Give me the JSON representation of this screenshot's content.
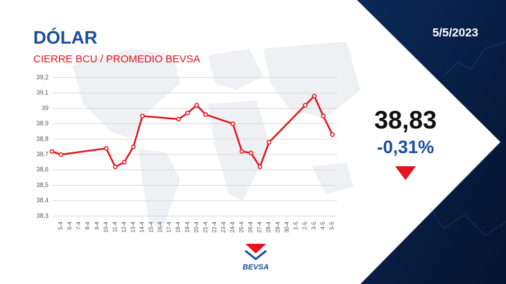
{
  "chart_data": {
    "type": "line",
    "title": "DÓLAR",
    "subtitle": "CIERRE BCU / PROMEDIO BEVSA",
    "categories": [
      null,
      "5-4",
      "6-4",
      "7-4",
      "8-4",
      "9-4",
      "10-4",
      "11-4",
      "12-4",
      "13-4",
      "14-4",
      "15-4",
      "16-4",
      "17-4",
      "18-4",
      "19-4",
      "20-4",
      "21-4",
      "22-4",
      "23-4",
      "24-4",
      "25-4",
      "26-4",
      "27-4",
      "28-4",
      "29-4",
      "30-4",
      "1-5",
      "2-5",
      "3-5",
      "4-5",
      "5-5"
    ],
    "values": [
      38.72,
      38.7,
      null,
      null,
      null,
      null,
      38.74,
      38.62,
      38.65,
      38.75,
      38.95,
      null,
      null,
      null,
      38.93,
      38.97,
      39.02,
      38.96,
      null,
      null,
      38.9,
      38.72,
      38.71,
      38.62,
      38.78,
      null,
      null,
      null,
      39.02,
      39.08,
      38.95,
      38.83
    ],
    "color": "#e3141c",
    "span_gaps": true,
    "grid": true,
    "ylim": [
      38.3,
      39.2
    ],
    "yticks": [
      {
        "value": 38.3,
        "label": "38,3"
      },
      {
        "value": 38.4,
        "label": "38,4"
      },
      {
        "value": 38.5,
        "label": "38,5"
      },
      {
        "value": 38.6,
        "label": "38,6"
      },
      {
        "value": 38.7,
        "label": "38,7"
      },
      {
        "value": 38.8,
        "label": "38,8"
      },
      {
        "value": 38.9,
        "label": "38,9"
      },
      {
        "value": 39,
        "label": "39"
      },
      {
        "value": 39.1,
        "label": "39,1"
      },
      {
        "value": 39.2,
        "label": "39,2"
      }
    ],
    "summary": {
      "date": "5/5/2023",
      "value": "38,83",
      "change": "-0,31%"
    },
    "logo": "BEVSA"
  }
}
